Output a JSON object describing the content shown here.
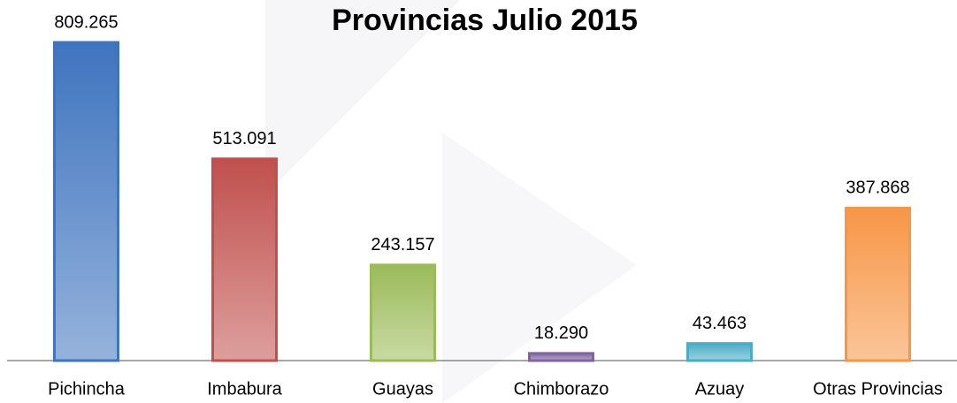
{
  "chart_data": {
    "type": "bar",
    "title": "Provincias Julio 2015",
    "categories": [
      "Pichincha",
      "Imbabura",
      "Guayas",
      "Chimborazo",
      "Azuay",
      "Otras Provincias"
    ],
    "values": [
      809265,
      513091,
      243157,
      18290,
      43463,
      387868
    ],
    "value_labels": [
      "809.265",
      "513.091",
      "243.157",
      "18.290",
      "43.463",
      "387.868"
    ],
    "colors": [
      "#3f74bf",
      "#c0504d",
      "#9bbb59",
      "#8064a2",
      "#4bacc6",
      "#f79646"
    ]
  }
}
